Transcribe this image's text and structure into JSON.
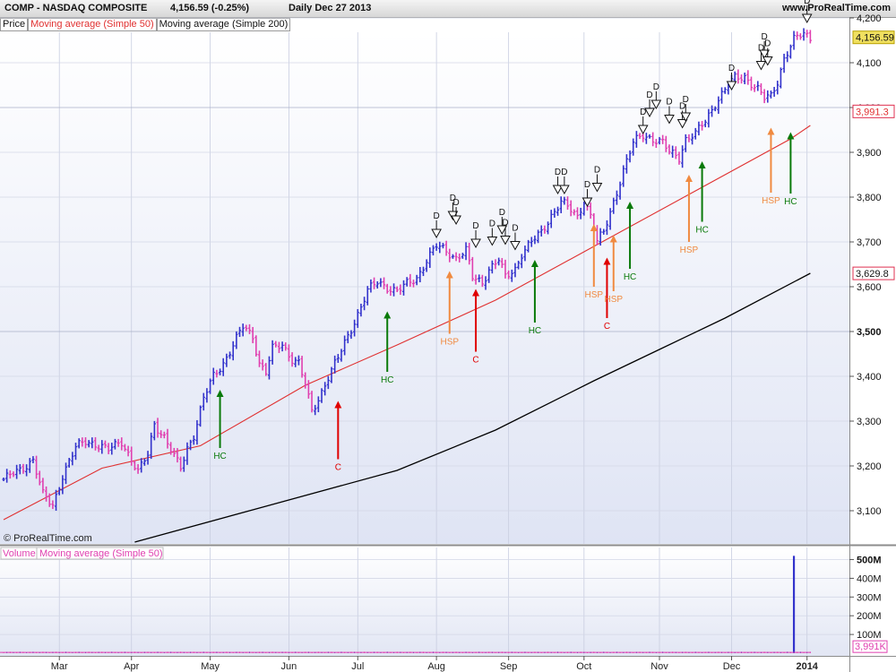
{
  "header": {
    "symbol_text": "COMP - NASDAQ COMPOSITE",
    "price_text": "4,156.59 (-0.25%)",
    "period_text": "Daily  Dec 27 2013",
    "site_text": "www.ProRealTime.com"
  },
  "legend": {
    "price": "Price",
    "ma50": "Moving average (Simple 50)",
    "ma200": "Moving average (Simple 200)"
  },
  "volume_legend": {
    "volume": "Volume",
    "ma": "Moving average (Simple 50)"
  },
  "copyright": "© ProRealTime.com",
  "colors": {
    "up_bar": "#3333cc",
    "down_bar": "#e040b0",
    "ma50": "#e03030",
    "ma200": "#000000",
    "hc": "#0a7a0a",
    "c": "#e00000",
    "hsp": "#f08a40",
    "current_price_bg": "#f0e060",
    "label_box": "#e03050"
  },
  "chart_data": {
    "type": "ohlc",
    "y_ticks": [
      "3,100",
      "3,200",
      "3,300",
      "3,400",
      "3,500",
      "3,600",
      "3,700",
      "3,800",
      "3,900",
      "4,000",
      "4,100",
      "4,200"
    ],
    "y_values": [
      3100,
      3200,
      3300,
      3400,
      3500,
      3600,
      3700,
      3800,
      3900,
      4000,
      4100,
      4200
    ],
    "ylim": [
      3050,
      4275
    ],
    "x_ticks": [
      "Mar",
      "Apr",
      "May",
      "Jun",
      "Jul",
      "Aug",
      "Sep",
      "Oct",
      "Nov",
      "Dec",
      "2014"
    ],
    "current_price": {
      "label": "4,156.59",
      "value": 4156.59
    },
    "value_labels": [
      {
        "label": "3,991.3",
        "value": 3991.3
      },
      {
        "label": "3,629.8",
        "value": 3629.8
      }
    ],
    "anchors": [
      [
        0,
        3170
      ],
      [
        5,
        3190
      ],
      [
        9,
        3215
      ],
      [
        12,
        3135
      ],
      [
        15,
        3110
      ],
      [
        18,
        3180
      ],
      [
        22,
        3240
      ],
      [
        25,
        3255
      ],
      [
        28,
        3250
      ],
      [
        32,
        3235
      ],
      [
        36,
        3255
      ],
      [
        39,
        3215
      ],
      [
        41,
        3185
      ],
      [
        44,
        3225
      ],
      [
        46,
        3295
      ],
      [
        49,
        3265
      ],
      [
        52,
        3220
      ],
      [
        54,
        3195
      ],
      [
        56,
        3240
      ],
      [
        58,
        3270
      ],
      [
        61,
        3350
      ],
      [
        64,
        3400
      ],
      [
        67,
        3430
      ],
      [
        70,
        3470
      ],
      [
        73,
        3510
      ],
      [
        76,
        3490
      ],
      [
        78,
        3430
      ],
      [
        80,
        3410
      ],
      [
        82,
        3460
      ],
      [
        85,
        3470
      ],
      [
        88,
        3440
      ],
      [
        90,
        3430
      ],
      [
        92,
        3380
      ],
      [
        94,
        3320
      ],
      [
        96,
        3350
      ],
      [
        99,
        3400
      ],
      [
        102,
        3440
      ],
      [
        105,
        3490
      ],
      [
        108,
        3540
      ],
      [
        111,
        3590
      ],
      [
        114,
        3610
      ],
      [
        117,
        3600
      ],
      [
        120,
        3590
      ],
      [
        123,
        3605
      ],
      [
        126,
        3620
      ],
      [
        129,
        3660
      ],
      [
        132,
        3690
      ],
      [
        135,
        3680
      ],
      [
        138,
        3665
      ],
      [
        141,
        3680
      ],
      [
        143,
        3620
      ],
      [
        146,
        3610
      ],
      [
        148,
        3640
      ],
      [
        151,
        3660
      ],
      [
        153,
        3620
      ],
      [
        156,
        3640
      ],
      [
        158,
        3675
      ],
      [
        161,
        3700
      ],
      [
        164,
        3720
      ],
      [
        167,
        3760
      ],
      [
        170,
        3790
      ],
      [
        173,
        3770
      ],
      [
        175,
        3755
      ],
      [
        177,
        3795
      ],
      [
        179,
        3760
      ],
      [
        181,
        3700
      ],
      [
        183,
        3720
      ],
      [
        186,
        3790
      ],
      [
        189,
        3860
      ],
      [
        192,
        3920
      ],
      [
        195,
        3940
      ],
      [
        198,
        3930
      ],
      [
        201,
        3920
      ],
      [
        203,
        3900
      ],
      [
        206,
        3890
      ],
      [
        208,
        3930
      ],
      [
        211,
        3940
      ],
      [
        214,
        3970
      ],
      [
        217,
        4010
      ],
      [
        220,
        4040
      ],
      [
        223,
        4065
      ],
      [
        226,
        4070
      ],
      [
        228,
        4055
      ],
      [
        230,
        4040
      ],
      [
        232,
        4020
      ],
      [
        234,
        4025
      ],
      [
        236,
        4060
      ],
      [
        238,
        4110
      ],
      [
        241,
        4150
      ],
      [
        244,
        4165
      ],
      [
        246,
        4156.59
      ]
    ],
    "ma50": [
      [
        0,
        3080
      ],
      [
        30,
        3195
      ],
      [
        60,
        3245
      ],
      [
        92,
        3380
      ],
      [
        120,
        3470
      ],
      [
        150,
        3570
      ],
      [
        180,
        3690
      ],
      [
        210,
        3810
      ],
      [
        240,
        3930
      ],
      [
        246,
        3960
      ]
    ],
    "ma200": [
      [
        40,
        3030
      ],
      [
        80,
        3110
      ],
      [
        120,
        3190
      ],
      [
        150,
        3280
      ],
      [
        180,
        3390
      ],
      [
        200,
        3460
      ],
      [
        220,
        3530
      ],
      [
        246,
        3630
      ]
    ],
    "signals": [
      {
        "type": "HC",
        "label": "HC",
        "bar": 66,
        "from": 3240,
        "to": 3370
      },
      {
        "type": "C",
        "label": "C",
        "bar": 102,
        "from": 3215,
        "to": 3345
      },
      {
        "type": "HC",
        "label": "HC",
        "bar": 117,
        "from": 3410,
        "to": 3545
      },
      {
        "type": "HSP",
        "label": "HSP",
        "bar": 136,
        "from": 3495,
        "to": 3635
      },
      {
        "type": "C",
        "label": "C",
        "bar": 144,
        "from": 3455,
        "to": 3595
      },
      {
        "type": "HC",
        "label": "HC",
        "bar": 162,
        "from": 3520,
        "to": 3660
      },
      {
        "type": "HSP",
        "label": "HSP",
        "bar": 180,
        "from": 3600,
        "to": 3740
      },
      {
        "type": "C",
        "label": "C",
        "bar": 184,
        "from": 3530,
        "to": 3665
      },
      {
        "type": "HSP",
        "label": "HSP",
        "bar": 186,
        "from": 3590,
        "to": 3715
      },
      {
        "type": "HC",
        "label": "HC",
        "bar": 191,
        "from": 3640,
        "to": 3790
      },
      {
        "type": "HSP",
        "label": "HSP",
        "bar": 209,
        "from": 3700,
        "to": 3850
      },
      {
        "type": "HC",
        "label": "HC",
        "bar": 213,
        "from": 3745,
        "to": 3880
      },
      {
        "type": "HSP",
        "label": "HSP",
        "bar": 234,
        "from": 3810,
        "to": 3955
      },
      {
        "type": "HC",
        "label": "HC",
        "bar": 240,
        "from": 3808,
        "to": 3945
      }
    ],
    "d_markers": [
      {
        "label": "D",
        "bar": 132,
        "value": 3710
      },
      {
        "label": "D",
        "bar": 137,
        "value": 3750
      },
      {
        "label": "D",
        "bar": 138,
        "value": 3740
      },
      {
        "label": "D",
        "bar": 144,
        "value": 3688
      },
      {
        "label": "D",
        "bar": 149,
        "value": 3693
      },
      {
        "label": "D",
        "bar": 152,
        "value": 3718
      },
      {
        "label": "D",
        "bar": 153,
        "value": 3695
      },
      {
        "label": "D",
        "bar": 156,
        "value": 3683
      },
      {
        "label": "D",
        "bar": 169,
        "value": 3808
      },
      {
        "label": "D",
        "bar": 171,
        "value": 3808
      },
      {
        "label": "D",
        "bar": 178,
        "value": 3780
      },
      {
        "label": "D",
        "bar": 181,
        "value": 3813
      },
      {
        "label": "D",
        "bar": 195,
        "value": 3942
      },
      {
        "label": "D",
        "bar": 197,
        "value": 3980
      },
      {
        "label": "D",
        "bar": 199,
        "value": 3998
      },
      {
        "label": "D",
        "bar": 203,
        "value": 3965
      },
      {
        "label": "D",
        "bar": 207,
        "value": 3955
      },
      {
        "label": "D",
        "bar": 208,
        "value": 3970
      },
      {
        "label": "D",
        "bar": 222,
        "value": 4040
      },
      {
        "label": "D",
        "bar": 231,
        "value": 4085
      },
      {
        "label": "D",
        "bar": 232,
        "value": 4110
      },
      {
        "label": "D",
        "bar": 233,
        "value": 4095
      },
      {
        "label": "D",
        "bar": 245,
        "value": 4190
      }
    ],
    "volume": {
      "y_ticks": [
        "100M",
        "200M",
        "300M",
        "400M",
        "500M"
      ],
      "y_values": [
        100,
        200,
        300,
        400,
        500
      ],
      "ylim": [
        0,
        560
      ],
      "unit": "M",
      "base_level": 5,
      "spike": {
        "bar": 241,
        "value": 520
      },
      "ma_label": "3,991K",
      "ma_value": 4
    }
  }
}
